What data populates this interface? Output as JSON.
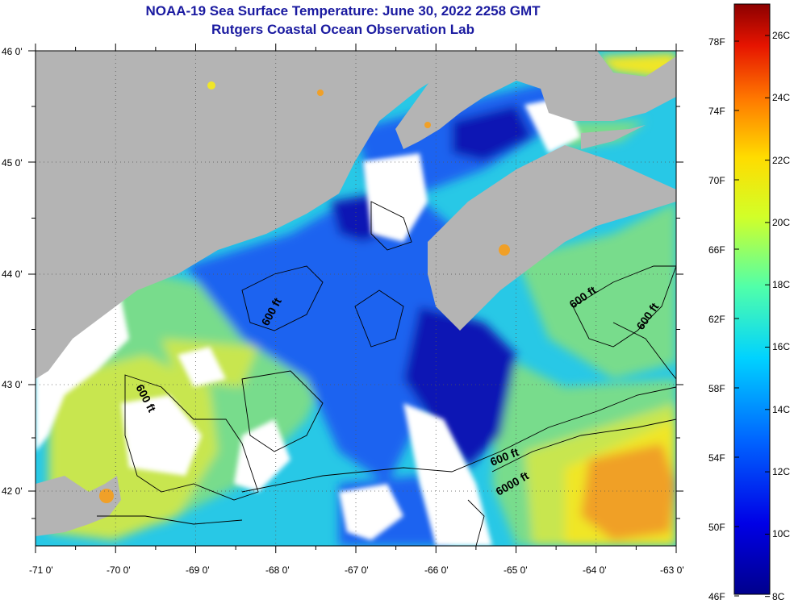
{
  "header": {
    "title_line1": "NOAA-19 Sea Surface Temperature:  June 30, 2022 2258 GMT",
    "title_line2": "Rutgers Coastal Ocean Observation Lab"
  },
  "map": {
    "lon_labels": [
      "-71 0'",
      "-70 0'",
      "-69 0'",
      "-68 0'",
      "-67 0'",
      "-66 0'",
      "-65 0'",
      "-64 0'",
      "-63 0'"
    ],
    "lat_labels": [
      "46 0'",
      "45 0'",
      "44 0'",
      "43 0'",
      "42 0'"
    ],
    "contour_labels": [
      "600 ft",
      "600 ft",
      "600 ft",
      "600 ft",
      "600 ft",
      "6000 ft"
    ],
    "colors": {
      "land": "#b4b4b4",
      "cloud": "#ffffff",
      "deep_blue": "#0a14b4",
      "blue": "#1e64f0",
      "cyan": "#28c8e6",
      "green": "#78dc8c",
      "yellow_green": "#c8e650",
      "yellow": "#f0e628",
      "orange": "#f0a028"
    }
  },
  "colorbar": {
    "fahrenheit_labels": [
      "78F",
      "74F",
      "70F",
      "66F",
      "62F",
      "58F",
      "54F",
      "50F",
      "46F"
    ],
    "celsius_labels": [
      "26C",
      "24C",
      "22C",
      "20C",
      "18C",
      "16C",
      "14C",
      "12C",
      "10C",
      "8C"
    ]
  }
}
